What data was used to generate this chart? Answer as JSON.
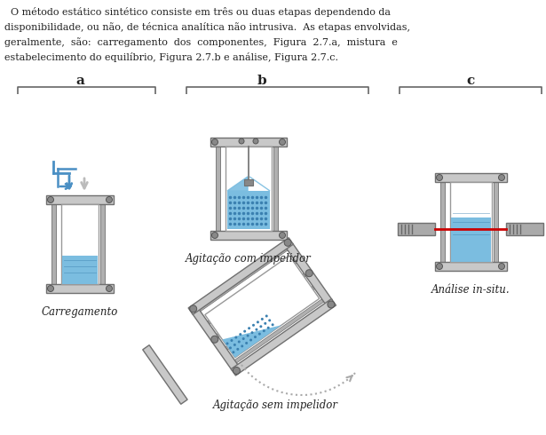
{
  "label_a": "a",
  "label_b": "b",
  "label_c": "c",
  "caption_a": "Carregamento",
  "caption_b1": "Agitação com impelidor",
  "caption_b2": "Agitação sem impelidor",
  "caption_c": "Análise in-situ.",
  "bg_color": "#ffffff",
  "body_color": "#c8c8c8",
  "rod_color": "#b0b0b0",
  "dark_gray": "#707070",
  "text_color": "#222222",
  "arrow_blue": "#4a8fc4",
  "arrow_gray": "#aaaaaa",
  "liquid_light": "#7bbde0",
  "liquid_dark": "#2a6090",
  "red_line": "#cc0000",
  "bracket_color": "#666666",
  "bolt_color": "#888888",
  "white": "#ffffff"
}
